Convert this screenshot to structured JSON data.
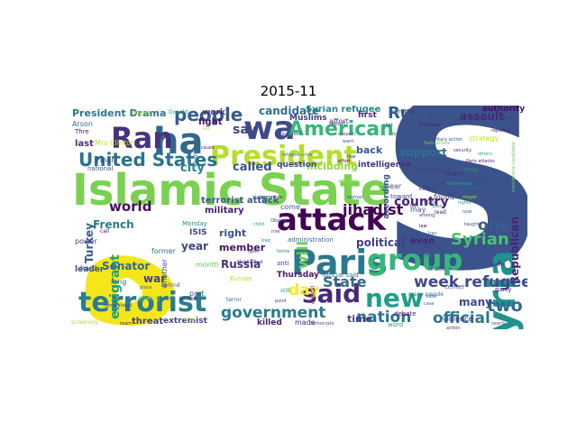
{
  "figure": {
    "title": "2015-11",
    "colors": {
      "dark_purple": "#440154",
      "purple": "#482777",
      "indigo": "#3e4a89",
      "blue": "#31688e",
      "teal": "#26828e",
      "green_teal": "#1f9e89",
      "green": "#35b779",
      "lime": "#6ece58",
      "yellow_green": "#b5de2b",
      "yellow": "#fde725"
    }
  },
  "words": [
    {
      "text": "S",
      "color": "#3b528b"
    },
    {
      "text": "ه",
      "color": "#f5e61a"
    },
    {
      "text": "Islamic State",
      "color": "#7ad151"
    },
    {
      "text": "wa",
      "color": "#3e4a89"
    },
    {
      "text": "ha",
      "color": "#31688e"
    },
    {
      "text": "Syria",
      "color": "#21918c"
    },
    {
      "text": "attack",
      "color": "#440154"
    },
    {
      "text": "Ran",
      "color": "#46327e"
    },
    {
      "text": "President",
      "color": "#b5de2b"
    },
    {
      "text": "Paris",
      "color": "#2a788e"
    },
    {
      "text": "group",
      "color": "#35b779"
    },
    {
      "text": "said",
      "color": "#482878"
    },
    {
      "text": "new",
      "color": "#1f9e89"
    },
    {
      "text": "terrorist",
      "color": "#287d8e"
    },
    {
      "text": "American",
      "color": "#35b779"
    },
    {
      "text": "United States",
      "color": "#2c728e"
    },
    {
      "text": "people",
      "color": "#365c8d"
    },
    {
      "text": "Russian",
      "color": "#38588c"
    },
    {
      "text": "world",
      "color": "#471063"
    },
    {
      "text": "week refugee",
      "color": "#3e4989"
    },
    {
      "text": "government",
      "color": "#287c8e"
    },
    {
      "text": "nation",
      "color": "#2c728e"
    },
    {
      "text": "official",
      "color": "#2a788e"
    },
    {
      "text": "Syrian",
      "color": "#4ac16d"
    },
    {
      "text": "two",
      "color": "#31688e"
    },
    {
      "text": "one",
      "color": "#35608d"
    },
    {
      "text": "will",
      "color": "#6ece58"
    },
    {
      "text": "State",
      "color": "#31688e"
    },
    {
      "text": "day",
      "color": "#fde725"
    },
    {
      "text": "jihadist",
      "color": "#440154"
    },
    {
      "text": "country",
      "color": "#482475"
    },
    {
      "text": "say",
      "color": "#414487"
    },
    {
      "text": "called",
      "color": "#3b528b"
    },
    {
      "text": "city",
      "color": "#25848e"
    },
    {
      "text": "emigrant",
      "color": "#1fa187"
    },
    {
      "text": "Republican",
      "color": "#482475"
    },
    {
      "text": "support",
      "color": "#2d708e"
    },
    {
      "text": "border",
      "color": "#3e4989"
    },
    {
      "text": "political",
      "color": "#433e85"
    },
    {
      "text": "French",
      "color": "#287d8e"
    },
    {
      "text": "Turkey",
      "color": "#365d8d"
    },
    {
      "text": "Senator",
      "color": "#31688e"
    },
    {
      "text": "war",
      "color": "#433e85"
    },
    {
      "text": "Russia",
      "color": "#46327e"
    },
    {
      "text": "candidate",
      "color": "#2d708e"
    },
    {
      "text": "Syrian refugee",
      "color": "#25858e"
    },
    {
      "text": "assault",
      "color": "#482878"
    },
    {
      "text": "President Drama",
      "color": "#2a788e"
    },
    {
      "text": "including",
      "color": "#90d743"
    },
    {
      "text": "time",
      "color": "#433e85"
    },
    {
      "text": "many",
      "color": "#404688"
    },
    {
      "text": "even",
      "color": "#482475"
    },
    {
      "text": "intelligence",
      "color": "#46327e"
    },
    {
      "text": "according",
      "color": "#39568c"
    },
    {
      "text": "back",
      "color": "#38598c"
    },
    {
      "text": "year",
      "color": "#414487"
    },
    {
      "text": "member",
      "color": "#471365"
    },
    {
      "text": "right",
      "color": "#3b528b"
    },
    {
      "text": "ISIS",
      "color": "#404588"
    },
    {
      "text": "terrorist attack",
      "color": "#38588c"
    },
    {
      "text": "military",
      "color": "#481c6e"
    },
    {
      "text": "Muslims",
      "color": "#443983"
    },
    {
      "text": "fight",
      "color": "#471164"
    },
    {
      "text": "work",
      "color": "#453581"
    },
    {
      "text": "last",
      "color": "#46327e"
    },
    {
      "text": "Arson",
      "color": "#2f6c8e"
    },
    {
      "text": "threat",
      "color": "#433e85"
    },
    {
      "text": "extremist",
      "color": "#414487"
    },
    {
      "text": "killed",
      "color": "#481f70"
    },
    {
      "text": "made",
      "color": "#482475"
    },
    {
      "text": "question",
      "color": "#3f4788"
    },
    {
      "text": "come",
      "color": "#375b8d"
    },
    {
      "text": "Thursday",
      "color": "#481a6c"
    },
    {
      "text": "leader",
      "color": "#3a548c"
    },
    {
      "text": "long",
      "color": "#2c718e"
    },
    {
      "text": "hard",
      "color": "#38598c"
    },
    {
      "text": "power",
      "color": "#433d84"
    },
    {
      "text": "month",
      "color": "#5ec962"
    },
    {
      "text": "part",
      "color": "#365d8d"
    },
    {
      "text": "former",
      "color": "#2d708e"
    },
    {
      "text": "whether",
      "color": "#3b528b"
    },
    {
      "text": "Europe",
      "color": "#b5de2b"
    },
    {
      "text": "anti",
      "color": "#3f4788"
    },
    {
      "text": "first",
      "color": "#482878"
    },
    {
      "text": "affort",
      "color": "#453781"
    },
    {
      "text": "bomb",
      "color": "#2c728e"
    },
    {
      "text": "authority",
      "color": "#470d60"
    },
    {
      "text": "strategy",
      "color": "#c0df25"
    },
    {
      "text": "toward",
      "color": "#404588"
    },
    {
      "text": "found",
      "color": "#433e85"
    },
    {
      "text": "near",
      "color": "#3e4989"
    },
    {
      "text": "lead",
      "color": "#482071"
    },
    {
      "text": "violence",
      "color": "#472d7b"
    },
    {
      "text": "debate",
      "color": "#471063"
    },
    {
      "text": "word",
      "color": "#22a884"
    },
    {
      "text": "party",
      "color": "#481d6f"
    },
    {
      "text": "center",
      "color": "#3d4d8a"
    },
    {
      "text": "airstrikes",
      "color": "#2f6c8e"
    },
    {
      "text": "make",
      "color": "#3b528b"
    },
    {
      "text": "Monday",
      "color": "#20928c"
    },
    {
      "text": "Mrs Clinton",
      "color": "#c2df23"
    },
    {
      "text": "Final",
      "color": "#453581"
    },
    {
      "text": "national",
      "color": "#39568c"
    },
    {
      "text": "region",
      "color": "#b8de29"
    },
    {
      "text": "report",
      "color": "#3e4a89"
    },
    {
      "text": "administration",
      "color": "#2e6e8e"
    },
    {
      "text": "official said",
      "color": "#2d708e"
    },
    {
      "text": "vital",
      "color": "#472c7a"
    },
    {
      "text": "may",
      "color": "#3b528b"
    },
    {
      "text": "Thre",
      "color": "#481467"
    },
    {
      "text": "United",
      "color": "#482576"
    },
    {
      "text": "growing",
      "color": "#b5de2b"
    },
    {
      "text": "fire",
      "color": "#b5de2b"
    },
    {
      "text": "screening",
      "color": "#a5db36"
    },
    {
      "text": "terror",
      "color": "#2a768e"
    },
    {
      "text": "capital",
      "color": "#482878"
    },
    {
      "text": "still",
      "color": "#20a386"
    },
    {
      "text": "killing",
      "color": "#45337d"
    },
    {
      "text": "Democrats",
      "color": "#3c4f8a"
    },
    {
      "text": "many people",
      "color": "#2b748e"
    },
    {
      "text": "state",
      "color": "#46337f"
    },
    {
      "text": "Middle East",
      "color": "#482374"
    },
    {
      "text": "statement",
      "color": "#3d4e8a"
    },
    {
      "text": "attacker",
      "color": "#8fd744"
    },
    {
      "text": "poll",
      "color": "#2f6b8e"
    },
    {
      "text": "Donald",
      "color": "#22a785"
    },
    {
      "text": "call",
      "color": "#481b6d"
    },
    {
      "text": "behind",
      "color": "#365c8d"
    },
    {
      "text": "Obama",
      "color": "#39568c"
    },
    {
      "text": "Iraq",
      "color": "#2a788e"
    },
    {
      "text": "home",
      "color": "#27808e"
    },
    {
      "text": "met",
      "color": "#3d4d8a"
    },
    {
      "text": "Paris attack",
      "color": "#6ccd5a"
    },
    {
      "text": "Wednesday",
      "color": "#1fa188"
    },
    {
      "text": "among",
      "color": "#453882"
    },
    {
      "text": "help",
      "color": "#3e4a89"
    },
    {
      "text": "plan",
      "color": "#26818e"
    },
    {
      "text": "Paris attacks",
      "color": "#482173"
    },
    {
      "text": "safe",
      "color": "#365d8d"
    },
    {
      "text": "military action",
      "color": "#34608d"
    },
    {
      "text": "now",
      "color": "#2c728e"
    },
    {
      "text": "security",
      "color": "#453581"
    },
    {
      "text": "Friday",
      "color": "#1e9b8a"
    },
    {
      "text": "Tuesday",
      "color": "#3f4889"
    },
    {
      "text": "use",
      "color": "#2b758e"
    },
    {
      "text": "mayor",
      "color": "#b2dd2d"
    },
    {
      "text": "first time",
      "color": "#481c6e"
    },
    {
      "text": "move",
      "color": "#3c508b"
    },
    {
      "text": "presidential candidate",
      "color": "#6ece58"
    },
    {
      "text": "reported",
      "color": "#481467"
    },
    {
      "text": "since",
      "color": "#472f7d"
    },
    {
      "text": "taught",
      "color": "#3b528b"
    },
    {
      "text": "force",
      "color": "#3a548c"
    },
    {
      "text": "ask",
      "color": "#2e6f8e"
    },
    {
      "text": "others",
      "color": "#22a884"
    },
    {
      "text": "Belgium",
      "color": "#482979"
    },
    {
      "text": "rights",
      "color": "#1f988b"
    },
    {
      "text": "ban",
      "color": "#3e4c8a"
    },
    {
      "text": "law",
      "color": "#440154"
    },
    {
      "text": "Iran",
      "color": "#31688e"
    },
    {
      "text": "army",
      "color": "#3f4788"
    },
    {
      "text": "fear",
      "color": "#481f70"
    },
    {
      "text": "want",
      "color": "#3b518b"
    },
    {
      "text": "shot",
      "color": "#433e85"
    },
    {
      "text": "police",
      "color": "#33638d"
    },
    {
      "text": "last week",
      "color": "#3f4788"
    },
    {
      "text": "refugee crisis",
      "color": "#2e6d8e"
    },
    {
      "text": "suspect",
      "color": "#3e4989"
    },
    {
      "text": "woman",
      "color": "#3c508b"
    },
    {
      "text": "child",
      "color": "#1f9f88"
    },
    {
      "text": "war crime",
      "color": "#3f4788"
    },
    {
      "text": "cause",
      "color": "#482475"
    },
    {
      "text": "left",
      "color": "#b5de2b"
    },
    {
      "text": "open",
      "color": "#48186a"
    },
    {
      "text": "point",
      "color": "#443a83"
    },
    {
      "text": "set",
      "color": "#3e4989"
    },
    {
      "text": "case",
      "color": "#2d708e"
    },
    {
      "text": "action",
      "color": "#46327e"
    },
    {
      "text": "nearly",
      "color": "#3b528b"
    },
    {
      "text": "effort",
      "color": "#471063"
    },
    {
      "text": "show",
      "color": "#3e4a89"
    },
    {
      "text": "side",
      "color": "#2c728e"
    },
    {
      "text": "event",
      "color": "#48186a"
    },
    {
      "text": "place",
      "color": "#2f6c8e"
    },
    {
      "text": "ahead",
      "color": "#2c728e"
    },
    {
      "text": "team",
      "color": "#472d7b"
    },
    {
      "text": "move ahead",
      "color": "#3e4989"
    }
  ]
}
